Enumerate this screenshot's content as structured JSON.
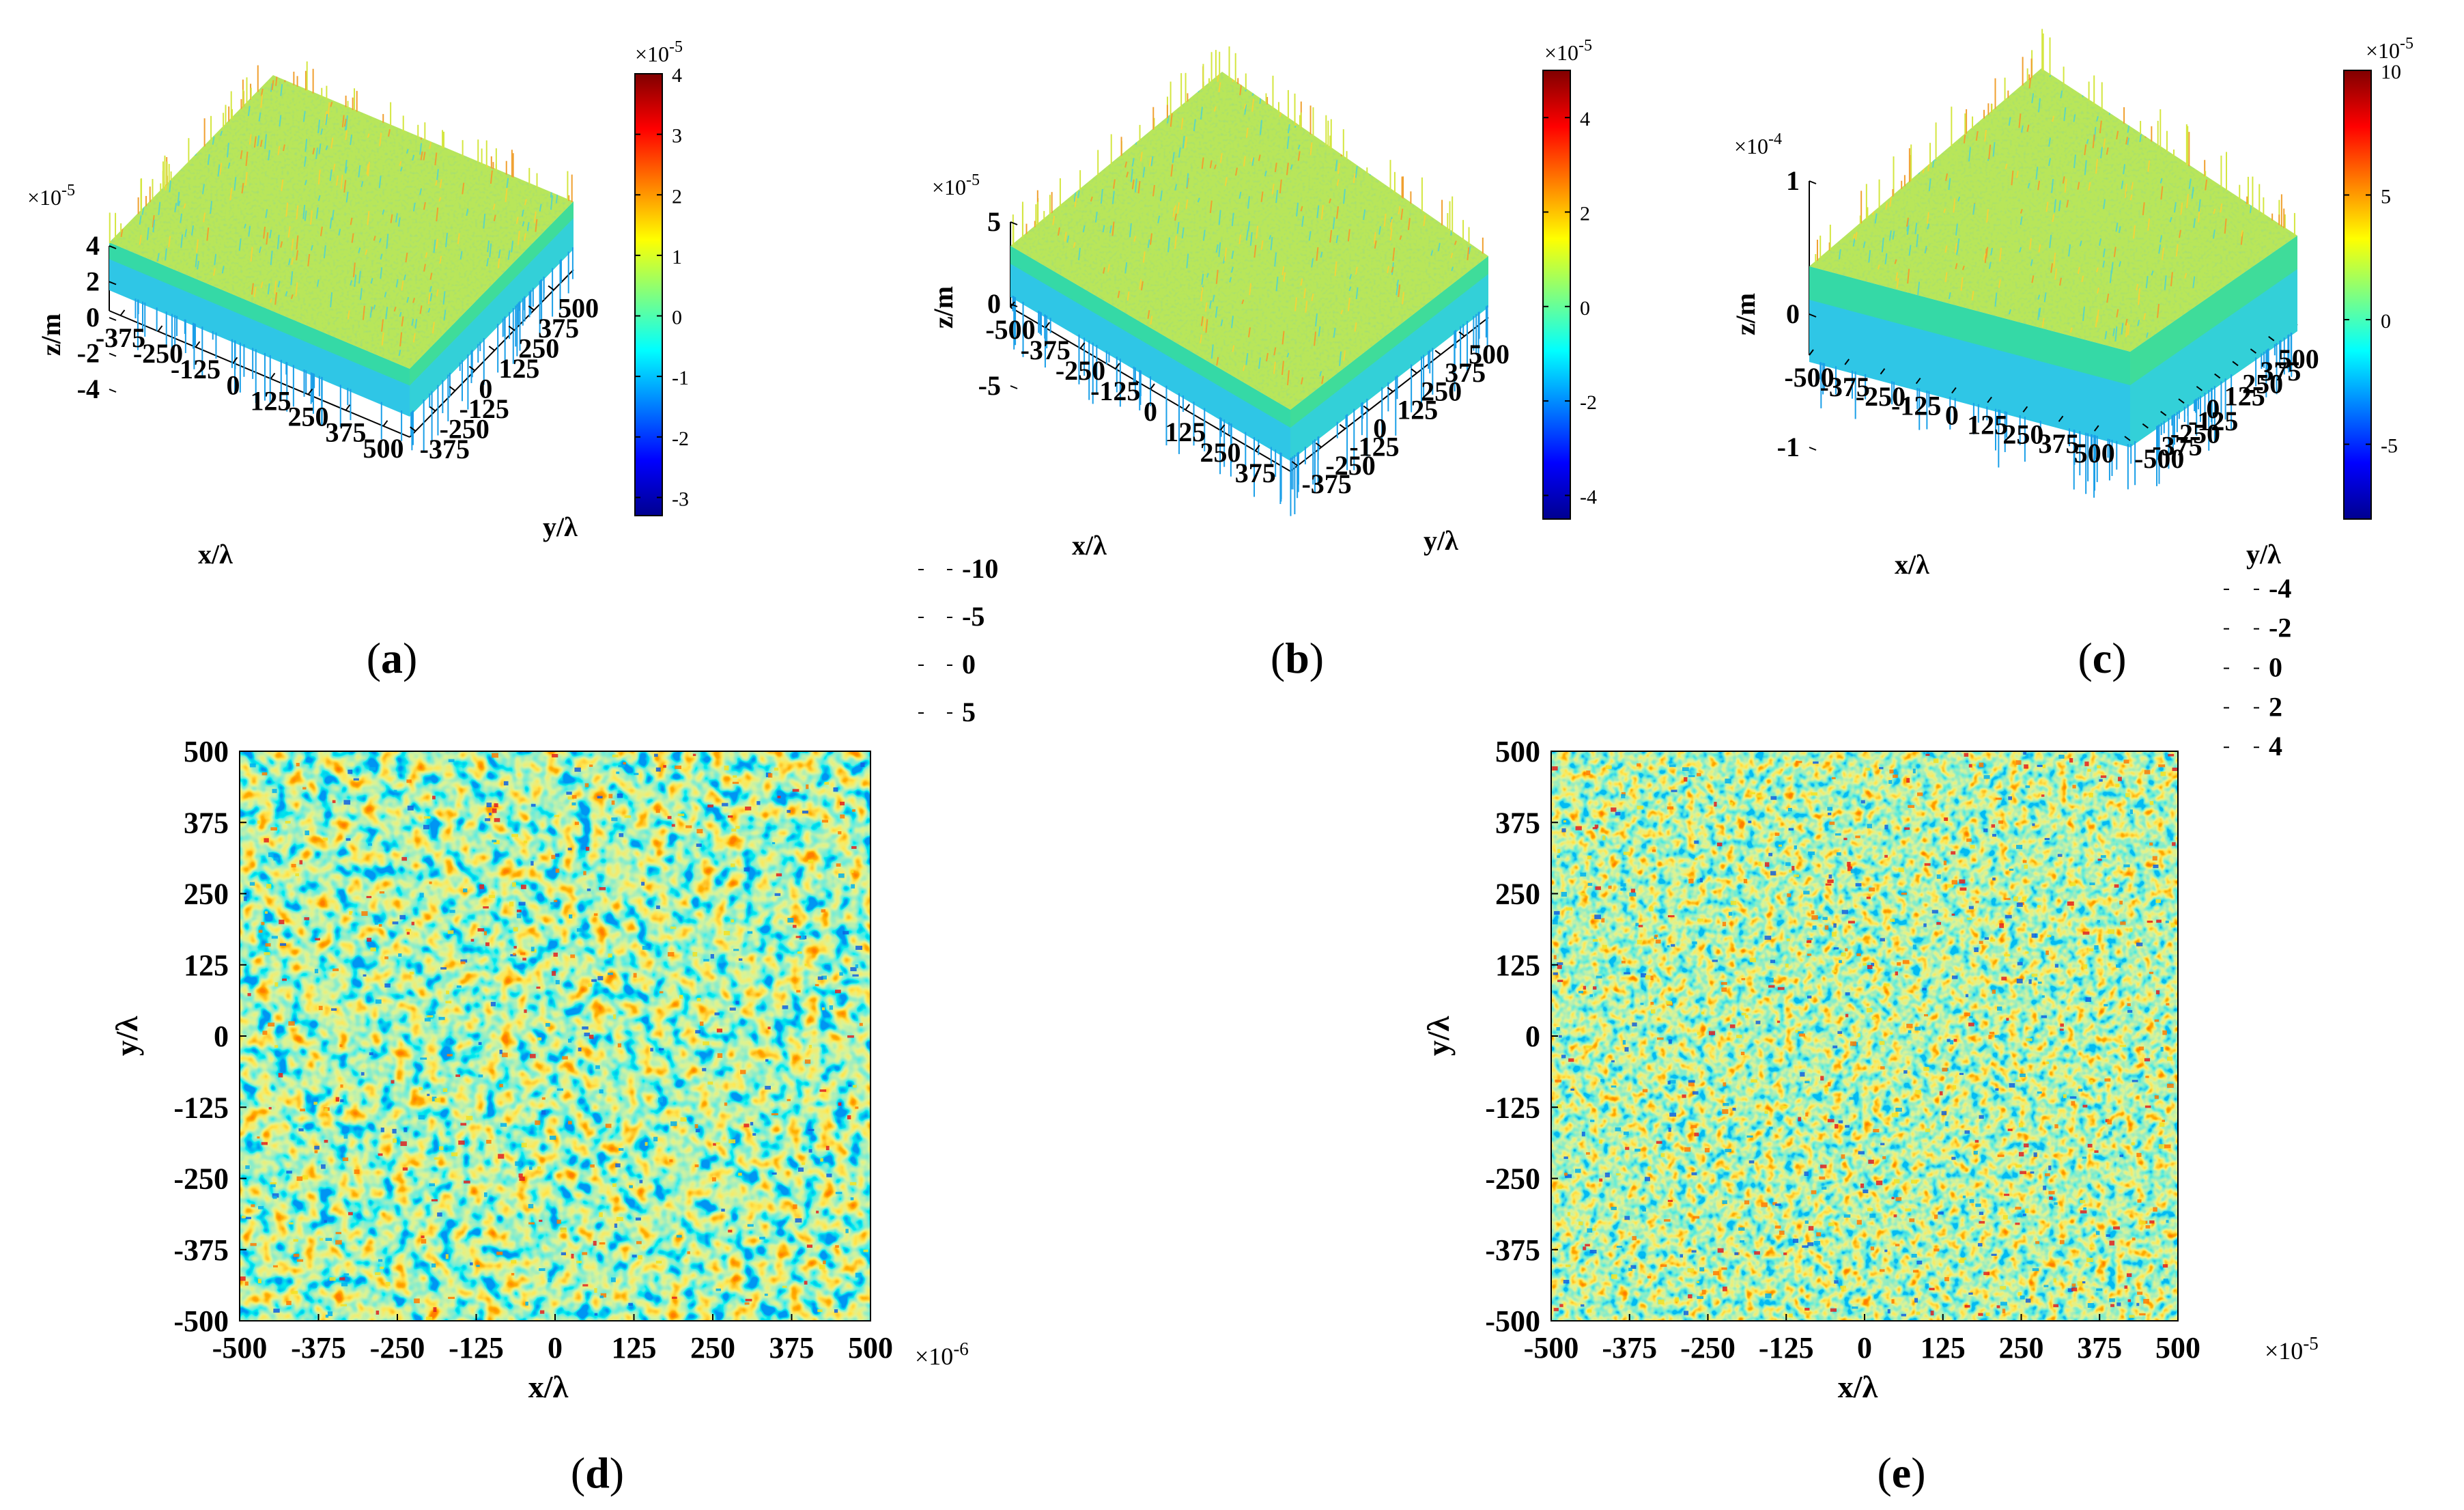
{
  "figure": {
    "panels": [
      {
        "id": "a",
        "label_open": "(",
        "label_letter": "a",
        "label_close": ")"
      },
      {
        "id": "b",
        "label_open": "(",
        "label_letter": "b",
        "label_close": ")"
      },
      {
        "id": "c",
        "label_open": "(",
        "label_letter": "c",
        "label_close": ")"
      },
      {
        "id": "d",
        "label_open": "(",
        "label_letter": "d",
        "label_close": ")"
      },
      {
        "id": "e",
        "label_open": "(",
        "label_letter": "e",
        "label_close": ")"
      }
    ]
  },
  "chart_data": [
    {
      "id": "a",
      "type": "surface3d",
      "xlabel": "x/λ",
      "ylabel": "y/λ",
      "zlabel": "z/m",
      "xticks": [
        "-375",
        "-250",
        "-125",
        "0",
        "125",
        "250",
        "375",
        "500"
      ],
      "yticks": [
        "-375",
        "-250",
        "-125",
        "0",
        "125",
        "250",
        "375",
        "500"
      ],
      "zticks": [
        "4",
        "2",
        "0",
        "-2",
        "-4"
      ],
      "zlim": [
        -4,
        4
      ],
      "z_multiplier": "×10-5",
      "colorbar": {
        "ticks": [
          "4",
          "3",
          "2",
          "1",
          "0",
          "-1",
          "-2",
          "-3"
        ],
        "range": [
          -3.3,
          4
        ],
        "multiplier": "×10-5"
      }
    },
    {
      "id": "b",
      "type": "surface3d",
      "xlabel": "x/λ",
      "ylabel": "y/λ",
      "zlabel": "z/m",
      "xticks": [
        "-500",
        "-375",
        "-250",
        "-125",
        "0",
        "125",
        "250",
        "375"
      ],
      "yticks": [
        "-375",
        "-250",
        "-125",
        "0",
        "125",
        "250",
        "375",
        "500"
      ],
      "zticks": [
        "5",
        "0",
        "-5"
      ],
      "zlim": [
        -5,
        5
      ],
      "z_multiplier": "×10-5",
      "colorbar": {
        "ticks": [
          "4",
          "2",
          "0",
          "-2",
          "-4"
        ],
        "range": [
          -4.5,
          5
        ],
        "multiplier": "×10-5"
      }
    },
    {
      "id": "c",
      "type": "surface3d",
      "xlabel": "x/λ",
      "ylabel": "y/λ",
      "zlabel": "z/m",
      "xticks": [
        "-500",
        "-375",
        "-250",
        "-125",
        "0",
        "125",
        "250",
        "375",
        "500"
      ],
      "yticks": [
        "-500",
        "-375",
        "-250",
        "-125",
        "0",
        "125",
        "250",
        "375",
        "500"
      ],
      "zticks": [
        "1",
        "0",
        "-1"
      ],
      "zlim": [
        -1,
        1
      ],
      "z_multiplier": "×10-4",
      "colorbar": {
        "ticks": [
          "10",
          "5",
          "0",
          "-5"
        ],
        "range": [
          -8,
          10
        ],
        "multiplier": "×10-5"
      }
    },
    {
      "id": "d",
      "type": "heatmap",
      "xlabel": "x/λ",
      "ylabel": "y/λ",
      "xticks": [
        "-500",
        "-375",
        "-250",
        "-125",
        "0",
        "125",
        "250",
        "375",
        "500"
      ],
      "yticks": [
        "500",
        "375",
        "250",
        "125",
        "0",
        "-125",
        "-250",
        "-375",
        "-500"
      ],
      "xlim": [
        -500,
        500
      ],
      "ylim": [
        -500,
        500
      ],
      "colorbar": {
        "ticks": [
          "5",
          "0",
          "-5",
          "-10"
        ],
        "range": [
          -10,
          9
        ],
        "multiplier": "×10-6"
      }
    },
    {
      "id": "e",
      "type": "heatmap",
      "xlabel": "x/λ",
      "ylabel": "y/λ",
      "xticks": [
        "-500",
        "-375",
        "-250",
        "-125",
        "0",
        "125",
        "250",
        "375",
        "500"
      ],
      "yticks": [
        "500",
        "375",
        "250",
        "125",
        "0",
        "-125",
        "-250",
        "-375",
        "-500"
      ],
      "xlim": [
        -500,
        500
      ],
      "ylim": [
        -500,
        500
      ],
      "colorbar": {
        "ticks": [
          "4",
          "2",
          "0",
          "-2",
          "-4"
        ],
        "range": [
          -5,
          4.2
        ],
        "multiplier": "×10-5"
      }
    }
  ]
}
